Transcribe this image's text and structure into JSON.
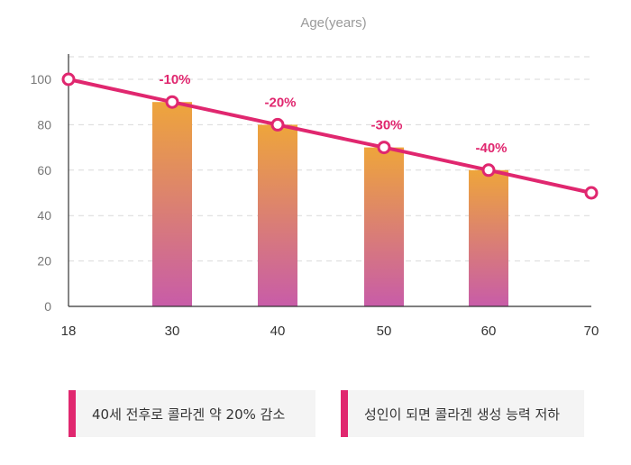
{
  "colors": {
    "line": "#e0276f",
    "bar_top": "#eea53b",
    "bar_bottom": "#c85ca8",
    "grid": "#d9d9d9",
    "axis": "#333333",
    "tick": "#777777",
    "legend_accent": "#e0276f"
  },
  "chart_data": {
    "type": "bar+line",
    "xlabel": "Age(years)",
    "ylabel": "",
    "ylim": [
      0,
      110
    ],
    "xlim": [
      18,
      70
    ],
    "xticks": [
      "18",
      "30",
      "40",
      "50",
      "60",
      "70"
    ],
    "yticks": [
      "0",
      "20",
      "40",
      "60",
      "80",
      "100"
    ],
    "grid": true,
    "bars": {
      "x": [
        30,
        40,
        50,
        60
      ],
      "values": [
        90,
        80,
        70,
        60
      ]
    },
    "line": {
      "x": [
        18,
        30,
        40,
        50,
        60,
        70
      ],
      "values": [
        100,
        90,
        80,
        70,
        60,
        50
      ]
    },
    "annotations": [
      {
        "x": 30,
        "text": "-10%"
      },
      {
        "x": 40,
        "text": "-20%"
      },
      {
        "x": 50,
        "text": "-30%"
      },
      {
        "x": 60,
        "text": "-40%"
      }
    ]
  },
  "legend": [
    {
      "text": "40세 전후로 콜라겐 약 20% 감소"
    },
    {
      "text": "성인이 되면 콜라겐 생성 능력 저하"
    }
  ]
}
